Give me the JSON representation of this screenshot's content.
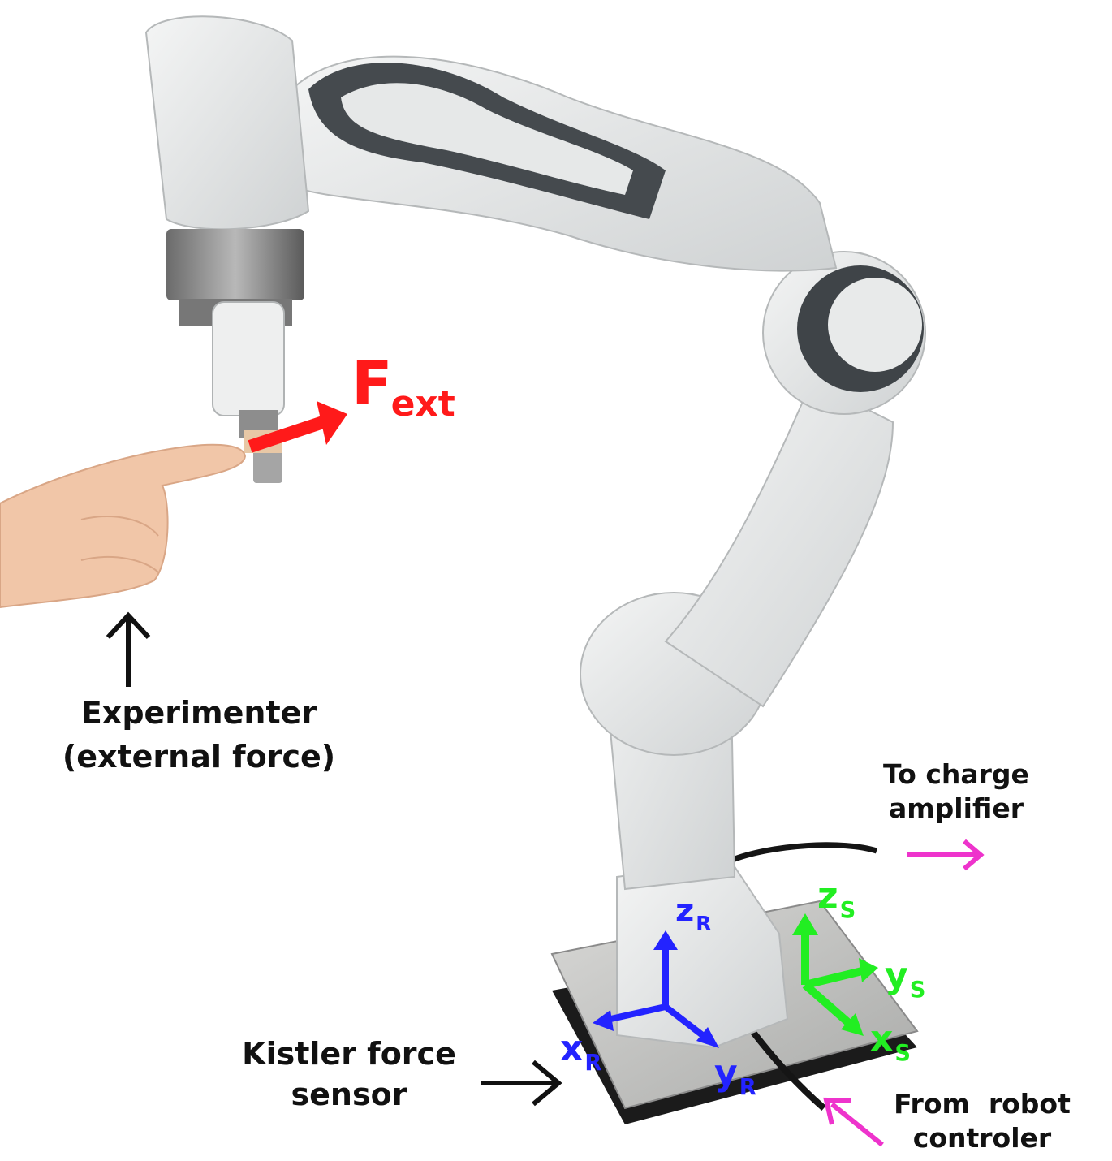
{
  "labels": {
    "experimenter_line1": "Experimenter",
    "experimenter_line2": "(external force)",
    "charge_line1": "To charge",
    "charge_line2": "amplifier",
    "kistler_line1": "Kistler force",
    "kistler_line2": "sensor",
    "robot_line1": "From  robot",
    "robot_line2": "controler"
  },
  "force": {
    "main": "F",
    "sub": "ext"
  },
  "robot_frame": {
    "z": "z",
    "z_sub": "R",
    "x": "x",
    "x_sub": "R",
    "y": "y",
    "y_sub": "R"
  },
  "sensor_frame": {
    "z": "z",
    "z_sub": "S",
    "x": "x",
    "x_sub": "S",
    "y": "y",
    "y_sub": "S"
  },
  "colors": {
    "force": "#ff1a1a",
    "robot_frame": "#2323ff",
    "sensor_frame": "#22ee22",
    "cable_arrow": "#ee33cc",
    "label_arrow": "#111111"
  }
}
